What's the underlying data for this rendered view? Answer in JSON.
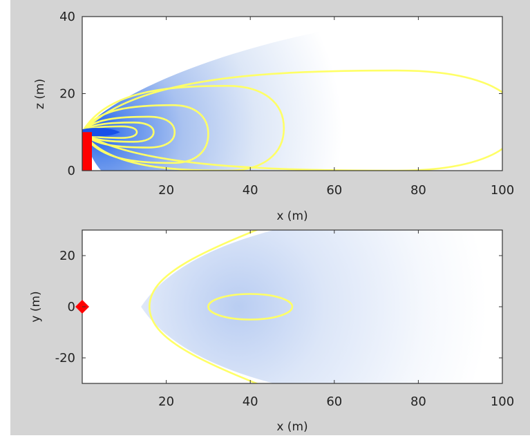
{
  "chart_data": [
    {
      "type": "heatmap",
      "subtype": "contour",
      "title": "",
      "xlabel": "x (m)",
      "ylabel": "z (m)",
      "xlim": [
        0,
        100
      ],
      "ylim": [
        0,
        40
      ],
      "xticks": [
        20,
        40,
        60,
        80,
        100
      ],
      "yticks": [
        0,
        20,
        40
      ],
      "grid": false,
      "legend": "none",
      "colormap": [
        "#ffffff",
        "#1f5ff0"
      ],
      "contour_color": "#ffff66",
      "source_marker": {
        "shape": "stack",
        "color": "#ff0000",
        "x": 0,
        "height": 10
      },
      "plume": {
        "source_x": 0,
        "source_z": 10
      },
      "contours": [
        {
          "x_end": 104,
          "z_top": 26,
          "z_bottom": 0
        },
        {
          "x_end": 48,
          "z_top": 22,
          "z_bottom": 0
        },
        {
          "x_end": 30,
          "z_top": 17,
          "z_bottom": 2
        },
        {
          "x_end": 22,
          "z_top": 14,
          "z_bottom": 6
        },
        {
          "x_end": 17,
          "z_top": 12.5,
          "z_bottom": 7.5
        },
        {
          "x_end": 13,
          "z_top": 11.5,
          "z_bottom": 8.5
        }
      ]
    },
    {
      "type": "heatmap",
      "subtype": "contour",
      "title": "",
      "xlabel": "x (m)",
      "ylabel": "y (m)",
      "xlim": [
        0,
        100
      ],
      "ylim": [
        -30,
        30
      ],
      "xticks": [
        20,
        40,
        60,
        80,
        100
      ],
      "yticks": [
        -20,
        0,
        20
      ],
      "grid": false,
      "legend": "none",
      "colormap": [
        "#ffffff",
        "#1f5ff0"
      ],
      "contour_color": "#ffff66",
      "source_marker": {
        "shape": "diamond",
        "color": "#ff0000",
        "x": 0,
        "y": 0
      },
      "contours": [
        {
          "x_start": 16,
          "x_end": 130,
          "half_width": 55
        },
        {
          "x_start": 30,
          "x_end": 50,
          "half_width": 5
        }
      ]
    }
  ]
}
